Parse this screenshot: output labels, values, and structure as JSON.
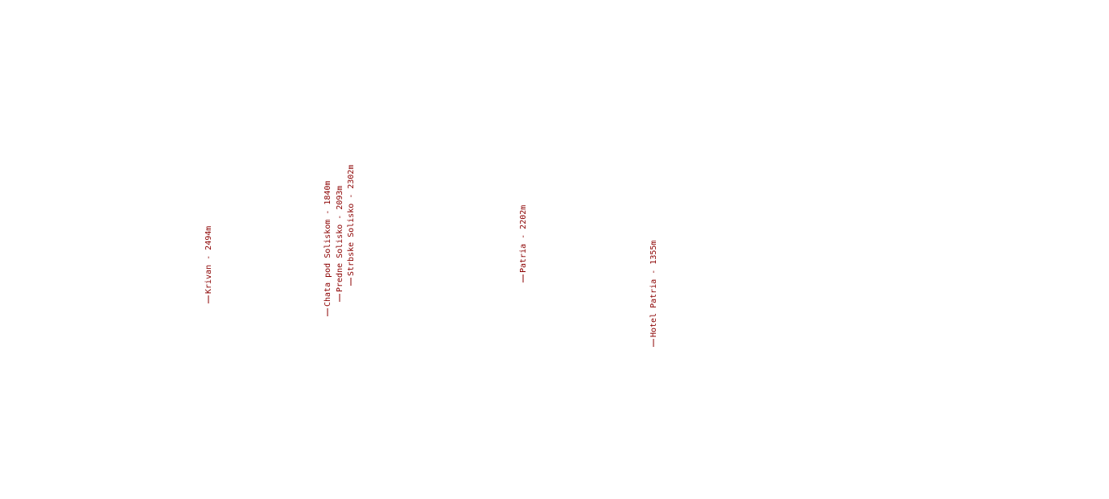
{
  "labels": [
    "Krivan - 2494m",
    "Chata pod Soliskom - 1840m",
    "Predne Solisko - 2093m",
    "Strbske Solisko - 2302m",
    "Patria - 2202m",
    "Hotel Patria - 1355m"
  ]
}
